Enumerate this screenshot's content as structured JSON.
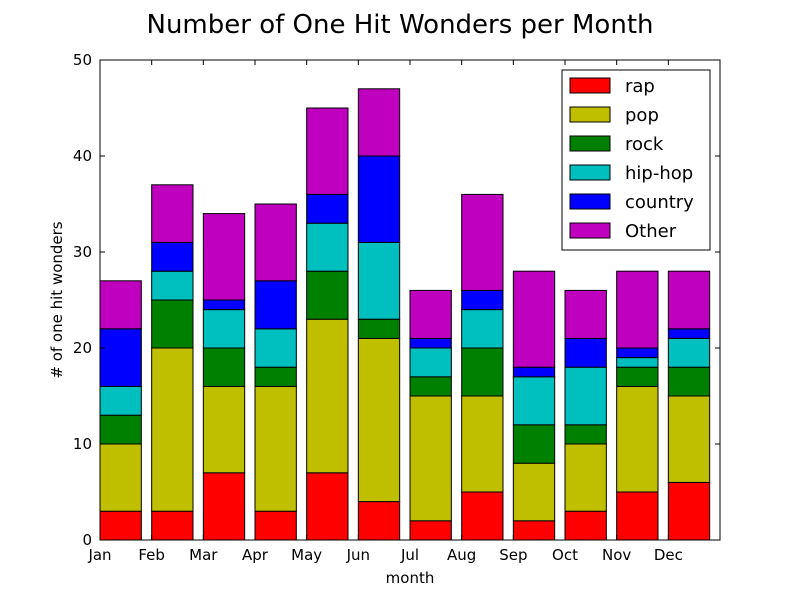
{
  "chart_data": {
    "type": "bar",
    "stacked": true,
    "title": "Number of One Hit Wonders per Month",
    "xlabel": "month",
    "ylabel": "# of one hit wonders",
    "ylim": [
      0,
      50
    ],
    "yticks": [
      0,
      10,
      20,
      30,
      40,
      50
    ],
    "legend_position": "top-right",
    "categories": [
      "Jan",
      "Feb",
      "Mar",
      "Apr",
      "May",
      "Jun",
      "Jul",
      "Aug",
      "Sep",
      "Oct",
      "Nov",
      "Dec"
    ],
    "series": [
      {
        "name": "rap",
        "color": "#ff0000",
        "values": [
          3,
          3,
          7,
          3,
          7,
          4,
          2,
          5,
          2,
          3,
          5,
          6
        ]
      },
      {
        "name": "pop",
        "color": "#bfbf00",
        "values": [
          7,
          17,
          9,
          13,
          16,
          17,
          13,
          10,
          6,
          7,
          11,
          9
        ]
      },
      {
        "name": "rock",
        "color": "#008000",
        "values": [
          3,
          5,
          4,
          2,
          5,
          2,
          2,
          5,
          4,
          2,
          2,
          3
        ]
      },
      {
        "name": "hip-hop",
        "color": "#00bfbf",
        "values": [
          3,
          3,
          4,
          4,
          5,
          8,
          3,
          4,
          5,
          6,
          1,
          3
        ]
      },
      {
        "name": "country",
        "color": "#0000ff",
        "values": [
          6,
          3,
          1,
          5,
          3,
          9,
          1,
          2,
          1,
          3,
          1,
          1
        ]
      },
      {
        "name": "Other",
        "color": "#bf00bf",
        "values": [
          5,
          6,
          9,
          8,
          9,
          7,
          5,
          10,
          10,
          5,
          8,
          6
        ]
      }
    ]
  }
}
